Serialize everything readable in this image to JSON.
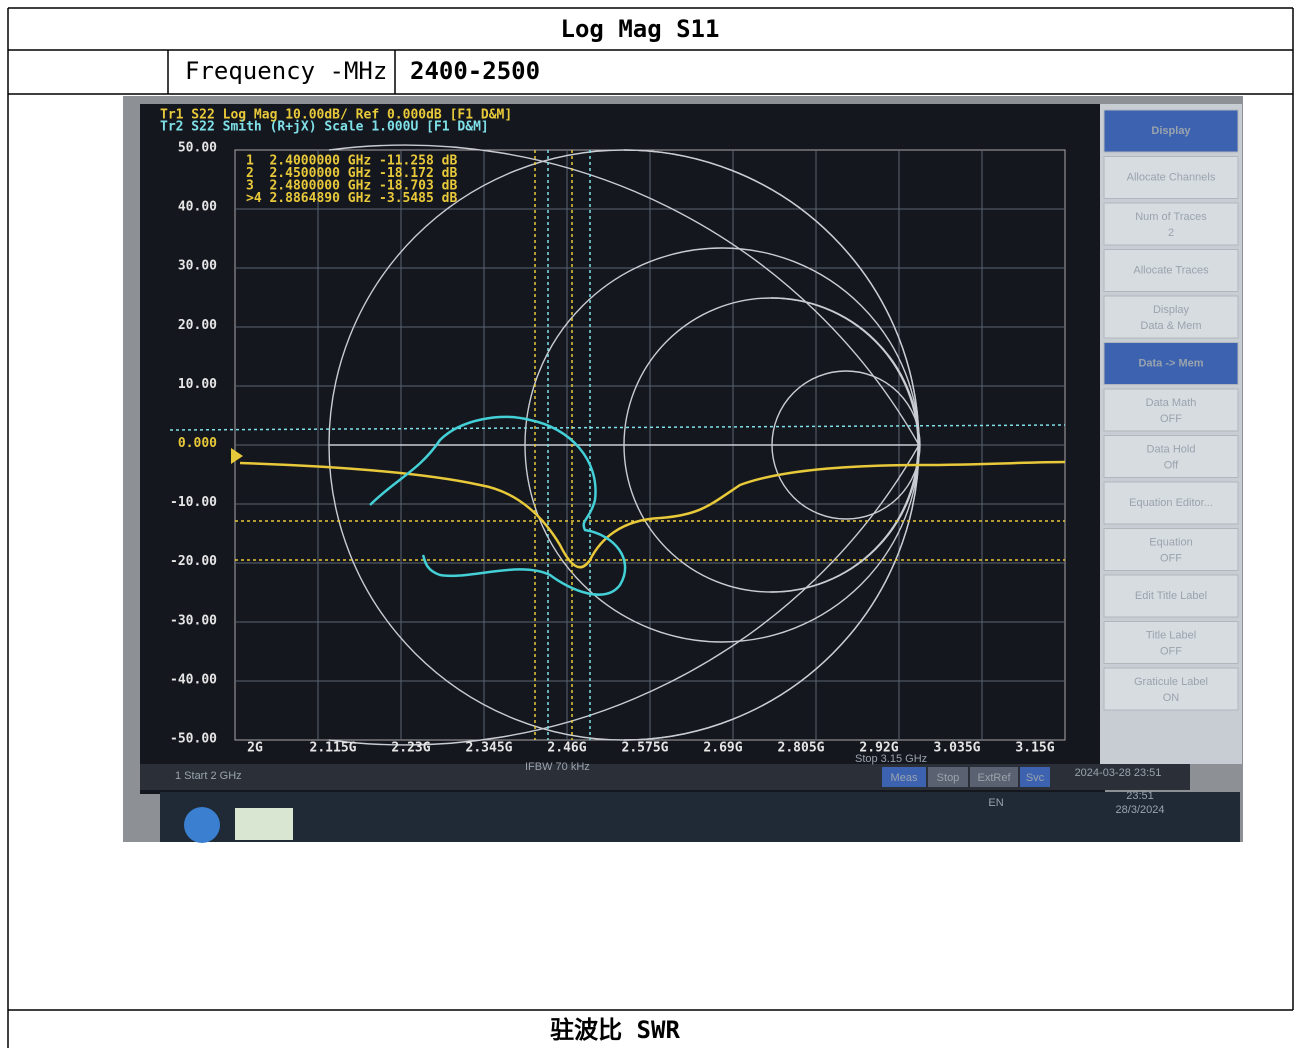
{
  "table": {
    "title": "Log Mag S11",
    "frequency_label": "Frequency -MHz",
    "frequency_range": "2400-2500",
    "footer": "驻波比 SWR"
  },
  "screen": {
    "trace_lines": [
      "Tr1 S22 Log Mag 10.00dB/ Ref 0.000dB [F1 D&M]",
      "Tr2 S22 Smith (R+jX) Scale 1.000U [F1 D&M]"
    ],
    "y_labels": [
      "50.00",
      "40.00",
      "30.00",
      "20.00",
      "10.00",
      "0.000",
      "-10.00",
      "-20.00",
      "-30.00",
      "-40.00",
      "-50.00"
    ],
    "markers": [
      "1  2.4000000 GHz -11.258 dB",
      "2  2.4500000 GHz -18.172 dB",
      "3  2.4800000 GHz -18.703 dB",
      ">4 2.8864890 GHz -3.5485 dB"
    ],
    "x_labels": [
      "2G",
      "2.115G",
      "2.23G",
      "2.345G",
      "2.46G",
      "2.575G",
      "2.69G",
      "2.805G",
      "2.92G",
      "3.035G",
      "3.15G"
    ],
    "softkeys": [
      {
        "label": "Display"
      },
      {
        "label": "Allocate Channels"
      },
      {
        "label": "Num of Traces",
        "value": "2"
      },
      {
        "label": "Allocate Traces"
      },
      {
        "label": "Display",
        "value": "Data & Mem"
      },
      {
        "label": "Data -> Mem"
      },
      {
        "label": "Data Math",
        "value": "OFF"
      },
      {
        "label": "Data Hold",
        "value": "Off"
      },
      {
        "label": "Equation Editor..."
      },
      {
        "label": "Equation",
        "value": "OFF"
      },
      {
        "label": "Edit Title Label"
      },
      {
        "label": "Title Label",
        "value": "OFF"
      },
      {
        "label": "Graticule Label",
        "value": "ON"
      }
    ],
    "start": "1  Start 2 GHz",
    "ifbw": "IFBW 70 kHz",
    "stop": "Stop 3.15 GHz",
    "status_buttons": [
      "Meas",
      "Stop",
      "ExtRef",
      "Svc"
    ],
    "datetime": "2024-03-28 23:51",
    "taskbar": {
      "language": "EN",
      "time": "23:51",
      "date": "28/3/2024"
    }
  }
}
